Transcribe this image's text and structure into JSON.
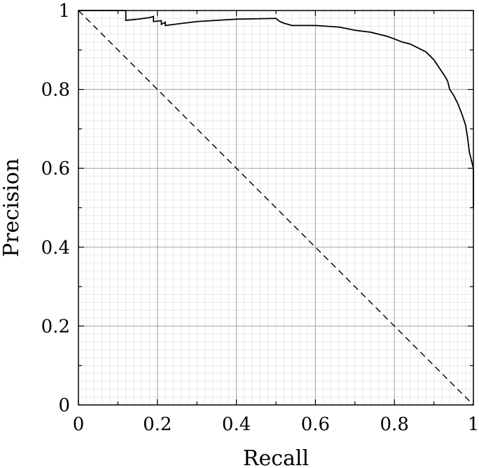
{
  "chart_data": {
    "type": "line",
    "title": "",
    "xlabel": "Recall",
    "ylabel": "Precision",
    "xlim": [
      0,
      1
    ],
    "ylim": [
      0,
      1
    ],
    "xticks": [
      "0",
      "0.2",
      "0.4",
      "0.6",
      "0.8",
      "1"
    ],
    "yticks": [
      "0",
      "0.2",
      "0.4",
      "0.6",
      "0.8",
      "1"
    ],
    "grid": {
      "major": true,
      "minor": true
    },
    "legend": "none",
    "series": [
      {
        "style": "solid",
        "color": "#000000",
        "points": [
          [
            0.0,
            1.0
          ],
          [
            0.12,
            1.0
          ],
          [
            0.12,
            0.975
          ],
          [
            0.15,
            0.978
          ],
          [
            0.18,
            0.982
          ],
          [
            0.19,
            0.985
          ],
          [
            0.19,
            0.972
          ],
          [
            0.21,
            0.974
          ],
          [
            0.21,
            0.965
          ],
          [
            0.22,
            0.97
          ],
          [
            0.22,
            0.962
          ],
          [
            0.3,
            0.972
          ],
          [
            0.4,
            0.978
          ],
          [
            0.5,
            0.98
          ],
          [
            0.51,
            0.972
          ],
          [
            0.52,
            0.968
          ],
          [
            0.54,
            0.962
          ],
          [
            0.6,
            0.962
          ],
          [
            0.66,
            0.958
          ],
          [
            0.7,
            0.95
          ],
          [
            0.74,
            0.945
          ],
          [
            0.78,
            0.935
          ],
          [
            0.8,
            0.928
          ],
          [
            0.82,
            0.92
          ],
          [
            0.84,
            0.915
          ],
          [
            0.86,
            0.905
          ],
          [
            0.88,
            0.895
          ],
          [
            0.9,
            0.875
          ],
          [
            0.91,
            0.86
          ],
          [
            0.92,
            0.845
          ],
          [
            0.93,
            0.83
          ],
          [
            0.935,
            0.82
          ],
          [
            0.94,
            0.8
          ],
          [
            0.95,
            0.785
          ],
          [
            0.96,
            0.765
          ],
          [
            0.97,
            0.74
          ],
          [
            0.98,
            0.71
          ],
          [
            0.985,
            0.68
          ],
          [
            0.99,
            0.64
          ],
          [
            0.995,
            0.62
          ],
          [
            1.0,
            0.6
          ],
          [
            1.0,
            0.5
          ]
        ]
      },
      {
        "style": "dashed",
        "color": "#000000",
        "points": [
          [
            0,
            1
          ],
          [
            1,
            0
          ]
        ]
      }
    ]
  }
}
